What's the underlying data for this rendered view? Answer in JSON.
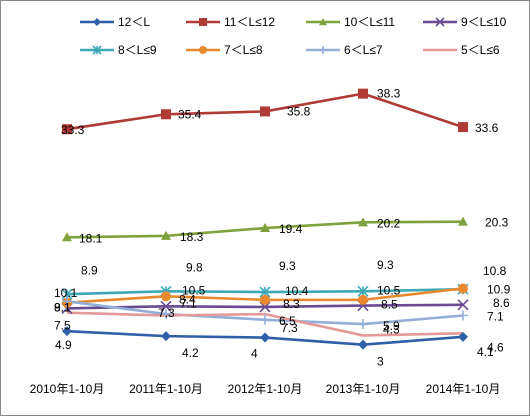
{
  "chart_data": {
    "type": "line",
    "categories": [
      "2010年1-10月",
      "2011年1-10月",
      "2012年1-10月",
      "2013年1-10月",
      "2014年1-10月"
    ],
    "series": [
      {
        "name": "12＜L",
        "color": "#2E5FA8",
        "marker": "diamond",
        "values": [
          4.9,
          4.2,
          4,
          3,
          4.1
        ]
      },
      {
        "name": "11＜L≤12",
        "color": "#B03A34",
        "marker": "square",
        "values": [
          33.3,
          35.4,
          35.8,
          38.3,
          33.6
        ]
      },
      {
        "name": "10＜L≤11",
        "color": "#7FA23C",
        "marker": "triangle",
        "values": [
          18.1,
          18.3,
          19.4,
          20.2,
          20.3
        ]
      },
      {
        "name": "9＜L≤10",
        "color": "#6A4C93",
        "marker": "x",
        "values": [
          8.1,
          8.4,
          8.3,
          8.5,
          8.6
        ]
      },
      {
        "name": "8＜L≤9",
        "color": "#3DA8B8",
        "marker": "star",
        "values": [
          10.1,
          10.5,
          10.4,
          10.5,
          10.8
        ]
      },
      {
        "name": "7＜L≤8",
        "color": "#E8892E",
        "marker": "circle",
        "values": [
          8.9,
          9.8,
          9.3,
          9.3,
          10.9
        ]
      },
      {
        "name": "6＜L≤7",
        "color": "#93AFD8",
        "marker": "plus",
        "values": [
          9.1,
          7.3,
          6.5,
          5.9,
          7.1
        ]
      },
      {
        "name": "5＜L≤6",
        "color": "#E39A98",
        "marker": "none",
        "values": [
          7.5,
          7.1,
          7.3,
          4.3,
          4.6
        ]
      }
    ],
    "ylim": [
      0,
      45
    ],
    "grid": false,
    "legend": "top"
  }
}
